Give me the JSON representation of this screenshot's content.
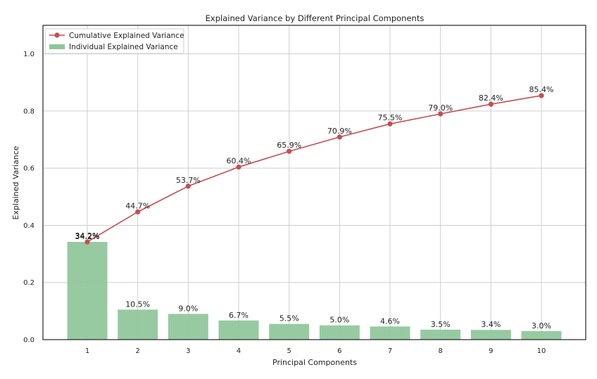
{
  "chart_data": {
    "type": "bar",
    "title": "Explained Variance by Different Principal Components",
    "xlabel": "Principal Components",
    "ylabel": "Explained Variance",
    "categories": [
      "1",
      "2",
      "3",
      "4",
      "5",
      "6",
      "7",
      "8",
      "9",
      "10"
    ],
    "ylim": [
      0,
      1.1
    ],
    "yticks": [
      "0.0",
      "0.2",
      "0.4",
      "0.6",
      "0.8",
      "1.0"
    ],
    "grid": true,
    "legend_position": "top-left",
    "series": [
      {
        "name": "Cumulative Explained Variance",
        "kind": "line",
        "color": "#c44e52",
        "values": [
          0.342,
          0.447,
          0.537,
          0.604,
          0.659,
          0.709,
          0.755,
          0.79,
          0.824,
          0.854
        ],
        "labels": [
          "34.2%",
          "44.7%",
          "53.7%",
          "60.4%",
          "65.9%",
          "70.9%",
          "75.5%",
          "79.0%",
          "82.4%",
          "85.4%"
        ]
      },
      {
        "name": "Individual Explained Variance",
        "kind": "bar",
        "color": "#8fc59a",
        "values": [
          0.342,
          0.105,
          0.09,
          0.067,
          0.055,
          0.05,
          0.046,
          0.035,
          0.034,
          0.03
        ],
        "labels": [
          "34.2%",
          "10.5%",
          "9.0%",
          "6.7%",
          "5.5%",
          "5.0%",
          "4.6%",
          "3.5%",
          "3.4%",
          "3.0%"
        ]
      }
    ]
  }
}
